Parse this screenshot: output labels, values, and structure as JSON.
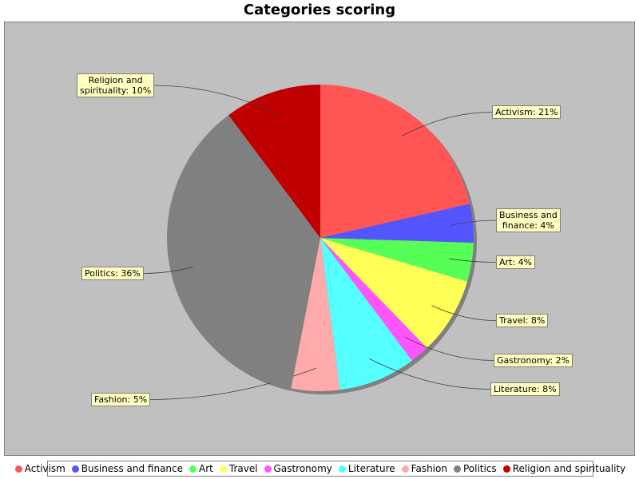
{
  "chart_data": {
    "type": "pie",
    "title": "Categories scoring",
    "slices": [
      {
        "name": "Activism",
        "value": 21,
        "label": "Activism: 21%",
        "color": "#ff5555"
      },
      {
        "name": "Business and finance",
        "value": 4,
        "label": "Business and finance: 4%",
        "color": "#5555ff"
      },
      {
        "name": "Art",
        "value": 4,
        "label": "Art: 4%",
        "color": "#55ff55"
      },
      {
        "name": "Travel",
        "value": 8,
        "label": "Travel: 8%",
        "color": "#ffff55"
      },
      {
        "name": "Gastronomy",
        "value": 2,
        "label": "Gastronomy: 2%",
        "color": "#ff55ff"
      },
      {
        "name": "Literature",
        "value": 8,
        "label": "Literature: 8%",
        "color": "#55ffff"
      },
      {
        "name": "Fashion",
        "value": 5,
        "label": "Fashion: 5%",
        "color": "#ffaaaa"
      },
      {
        "name": "Politics",
        "value": 36,
        "label": "Politics: 36%",
        "color": "#808080"
      },
      {
        "name": "Religion and spirituality",
        "value": 10,
        "label": "Religion and spirituality: 10%",
        "color": "#c00000"
      }
    ],
    "legend_position": "bottom"
  }
}
